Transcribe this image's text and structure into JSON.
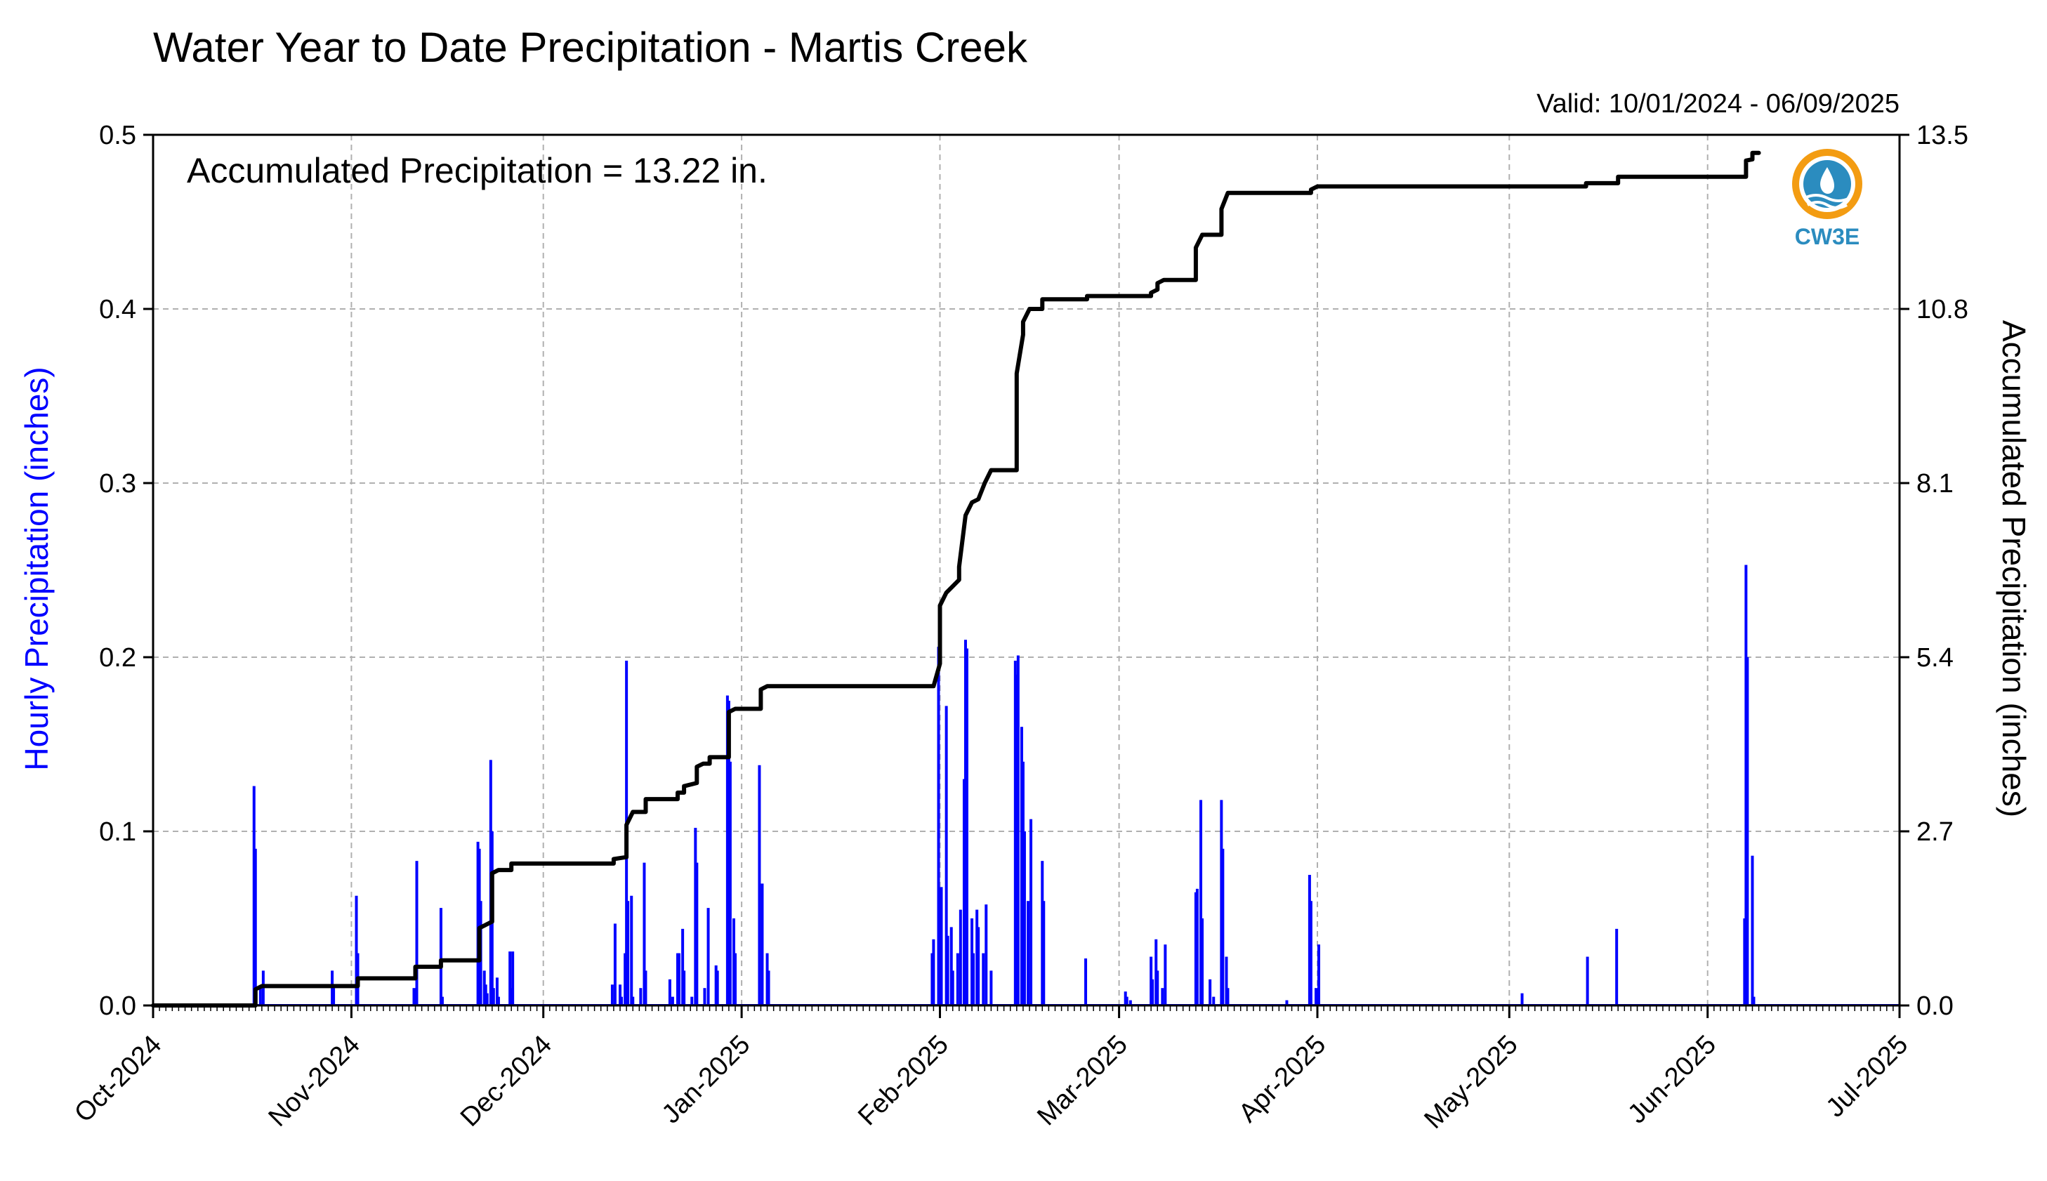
{
  "chart_data": {
    "type": "bar",
    "title": "Water Year to Date Precipitation - Martis Creek",
    "valid_text": "Valid: 10/01/2024 - 06/09/2025",
    "annotation": "Accumulated Precipitation = 13.22 in.",
    "ylabel": "Hourly Precipitation (inches)",
    "y2label": "Accumulated Precipitation (inches)",
    "logo_text": "CW3E",
    "colors": {
      "hourly": "#0000ff",
      "accumulated": "#000000",
      "grid": "#b0b0b0",
      "logo": "#2b8cbf",
      "logo_accent": "#f39c12"
    },
    "grid": true,
    "xlim": [
      "2024-10-01",
      "2025-07-01"
    ],
    "ylim": [
      0,
      0.5
    ],
    "y2lim": [
      0,
      13.5
    ],
    "yticks": [
      "0.0",
      "0.1",
      "0.2",
      "0.3",
      "0.4",
      "0.5"
    ],
    "y2ticks": [
      "0.0",
      "2.7",
      "5.4",
      "8.1",
      "10.8",
      "13.5"
    ],
    "xticks": [
      {
        "date": "2024-10-01",
        "label": "Oct-2024"
      },
      {
        "date": "2024-11-01",
        "label": "Nov-2024"
      },
      {
        "date": "2024-12-01",
        "label": "Dec-2024"
      },
      {
        "date": "2025-01-01",
        "label": "Jan-2025"
      },
      {
        "date": "2025-02-01",
        "label": "Feb-2025"
      },
      {
        "date": "2025-03-01",
        "label": "Mar-2025"
      },
      {
        "date": "2025-04-01",
        "label": "Apr-2025"
      },
      {
        "date": "2025-05-01",
        "label": "May-2025"
      },
      {
        "date": "2025-06-01",
        "label": "Jun-2025"
      },
      {
        "date": "2025-07-01",
        "label": "Jul-2025"
      }
    ],
    "series": [
      {
        "name": "Hourly Precipitation",
        "type": "bar",
        "points": [
          [
            "2024-10-17",
            0.126
          ],
          [
            "2024-10-17",
            0.09
          ],
          [
            "2024-10-18",
            0.02
          ],
          [
            "2024-10-18",
            0.01
          ],
          [
            "2024-10-29",
            0.02
          ],
          [
            "2024-10-29",
            0.01
          ],
          [
            "2024-11-02",
            0.063
          ],
          [
            "2024-11-02",
            0.03
          ],
          [
            "2024-11-11",
            0.083
          ],
          [
            "2024-11-11",
            0.01
          ],
          [
            "2024-11-15",
            0.056
          ],
          [
            "2024-11-15",
            0.005
          ],
          [
            "2024-11-21",
            0.094
          ],
          [
            "2024-11-21",
            0.09
          ],
          [
            "2024-11-21",
            0.06
          ],
          [
            "2024-11-22",
            0.02
          ],
          [
            "2024-11-22",
            0.012
          ],
          [
            "2024-11-22",
            0.007
          ],
          [
            "2024-11-23",
            0.141
          ],
          [
            "2024-11-23",
            0.1
          ],
          [
            "2024-11-23",
            0.01
          ],
          [
            "2024-11-24",
            0.016
          ],
          [
            "2024-11-24",
            0.005
          ],
          [
            "2024-11-26",
            0.031
          ],
          [
            "2024-11-26",
            0.031
          ],
          [
            "2024-11-26",
            0.01
          ],
          [
            "2024-12-12",
            0.047
          ],
          [
            "2024-12-12",
            0.012
          ],
          [
            "2024-12-13",
            0.012
          ],
          [
            "2024-12-13",
            0.005
          ],
          [
            "2024-12-14",
            0.03
          ],
          [
            "2024-12-14",
            0.198
          ],
          [
            "2024-12-14",
            0.06
          ],
          [
            "2024-12-15",
            0.063
          ],
          [
            "2024-12-15",
            0.005
          ],
          [
            "2024-12-16",
            0.01
          ],
          [
            "2024-12-17",
            0.082
          ],
          [
            "2024-12-17",
            0.02
          ],
          [
            "2024-12-21",
            0.005
          ],
          [
            "2024-12-21",
            0.015
          ],
          [
            "2024-12-22",
            0.03
          ],
          [
            "2024-12-22",
            0.03
          ],
          [
            "2024-12-23",
            0.044
          ],
          [
            "2024-12-23",
            0.02
          ],
          [
            "2024-12-24",
            0.005
          ],
          [
            "2024-12-25",
            0.102
          ],
          [
            "2024-12-25",
            0.082
          ],
          [
            "2024-12-26",
            0.01
          ],
          [
            "2024-12-27",
            0.056
          ],
          [
            "2024-12-28",
            0.023
          ],
          [
            "2024-12-28",
            0.02
          ],
          [
            "2024-12-30",
            0.178
          ],
          [
            "2024-12-30",
            0.175
          ],
          [
            "2024-12-30",
            0.14
          ],
          [
            "2024-12-31",
            0.05
          ],
          [
            "2024-12-31",
            0.03
          ],
          [
            "2025-01-04",
            0.07
          ],
          [
            "2025-01-04",
            0.138
          ],
          [
            "2025-01-05",
            0.03
          ],
          [
            "2025-01-05",
            0.02
          ],
          [
            "2025-01-31",
            0.03
          ],
          [
            "2025-01-31",
            0.038
          ],
          [
            "2025-02-01",
            0.068
          ],
          [
            "2025-02-01",
            0.206
          ],
          [
            "2025-02-02",
            0.172
          ],
          [
            "2025-02-02",
            0.04
          ],
          [
            "2025-02-03",
            0.045
          ],
          [
            "2025-02-03",
            0.02
          ],
          [
            "2025-02-04",
            0.055
          ],
          [
            "2025-02-04",
            0.03
          ],
          [
            "2025-02-05",
            0.21
          ],
          [
            "2025-02-05",
            0.205
          ],
          [
            "2025-02-05",
            0.13
          ],
          [
            "2025-02-06",
            0.05
          ],
          [
            "2025-02-06",
            0.03
          ],
          [
            "2025-02-07",
            0.055
          ],
          [
            "2025-02-07",
            0.045
          ],
          [
            "2025-02-08",
            0.058
          ],
          [
            "2025-02-08",
            0.03
          ],
          [
            "2025-02-09",
            0.02
          ],
          [
            "2025-02-13",
            0.201
          ],
          [
            "2025-02-13",
            0.198
          ],
          [
            "2025-02-13",
            0.19
          ],
          [
            "2025-02-14",
            0.1
          ],
          [
            "2025-02-14",
            0.16
          ],
          [
            "2025-02-14",
            0.14
          ],
          [
            "2025-02-15",
            0.107
          ],
          [
            "2025-02-15",
            0.06
          ],
          [
            "2025-02-17",
            0.083
          ],
          [
            "2025-02-17",
            0.06
          ],
          [
            "2025-02-24",
            0.027
          ],
          [
            "2025-03-02",
            0.008
          ],
          [
            "2025-03-02",
            0.005
          ],
          [
            "2025-03-03",
            0.003
          ],
          [
            "2025-03-06",
            0.028
          ],
          [
            "2025-03-06",
            0.015
          ],
          [
            "2025-03-07",
            0.038
          ],
          [
            "2025-03-07",
            0.02
          ],
          [
            "2025-03-08",
            0.035
          ],
          [
            "2025-03-08",
            0.01
          ],
          [
            "2025-03-13",
            0.065
          ],
          [
            "2025-03-13",
            0.067
          ],
          [
            "2025-03-14",
            0.118
          ],
          [
            "2025-03-14",
            0.05
          ],
          [
            "2025-03-15",
            0.015
          ],
          [
            "2025-03-16",
            0.005
          ],
          [
            "2025-03-17",
            0.118
          ],
          [
            "2025-03-17",
            0.09
          ],
          [
            "2025-03-18",
            0.028
          ],
          [
            "2025-03-18",
            0.01
          ],
          [
            "2025-03-27",
            0.003
          ],
          [
            "2025-03-31",
            0.075
          ],
          [
            "2025-03-31",
            0.06
          ],
          [
            "2025-04-01",
            0.035
          ],
          [
            "2025-04-01",
            0.01
          ],
          [
            "2025-05-03",
            0.007
          ],
          [
            "2025-05-13",
            0.028
          ],
          [
            "2025-05-18",
            0.044
          ],
          [
            "2025-06-07",
            0.253
          ],
          [
            "2025-06-07",
            0.2
          ],
          [
            "2025-06-07",
            0.05
          ],
          [
            "2025-06-08",
            0.086
          ],
          [
            "2025-06-08",
            0.005
          ]
        ]
      },
      {
        "name": "Accumulated Precipitation",
        "type": "line",
        "axis": "right",
        "points": [
          [
            "2024-10-01",
            0.0
          ],
          [
            "2024-10-17",
            0.0
          ],
          [
            "2024-10-17",
            0.25
          ],
          [
            "2024-10-18",
            0.3
          ],
          [
            "2024-11-02",
            0.3
          ],
          [
            "2024-11-02",
            0.42
          ],
          [
            "2024-11-11",
            0.42
          ],
          [
            "2024-11-11",
            0.6
          ],
          [
            "2024-11-15",
            0.6
          ],
          [
            "2024-11-15",
            0.7
          ],
          [
            "2024-11-21",
            0.7
          ],
          [
            "2024-11-21",
            1.2
          ],
          [
            "2024-11-22",
            1.25
          ],
          [
            "2024-11-23",
            1.3
          ],
          [
            "2024-11-23",
            2.05
          ],
          [
            "2024-11-24",
            2.1
          ],
          [
            "2024-11-26",
            2.1
          ],
          [
            "2024-11-26",
            2.2
          ],
          [
            "2024-12-12",
            2.2
          ],
          [
            "2024-12-12",
            2.27
          ],
          [
            "2024-12-14",
            2.3
          ],
          [
            "2024-12-14",
            2.8
          ],
          [
            "2024-12-15",
            3.0
          ],
          [
            "2024-12-17",
            3.0
          ],
          [
            "2024-12-17",
            3.2
          ],
          [
            "2024-12-22",
            3.2
          ],
          [
            "2024-12-22",
            3.3
          ],
          [
            "2024-12-23",
            3.3
          ],
          [
            "2024-12-23",
            3.4
          ],
          [
            "2024-12-25",
            3.45
          ],
          [
            "2024-12-25",
            3.7
          ],
          [
            "2024-12-26",
            3.75
          ],
          [
            "2024-12-27",
            3.75
          ],
          [
            "2024-12-27",
            3.85
          ],
          [
            "2024-12-30",
            3.85
          ],
          [
            "2024-12-30",
            4.55
          ],
          [
            "2024-12-31",
            4.6
          ],
          [
            "2025-01-04",
            4.6
          ],
          [
            "2025-01-04",
            4.9
          ],
          [
            "2025-01-05",
            4.95
          ],
          [
            "2025-01-31",
            4.95
          ],
          [
            "2025-02-01",
            5.3
          ],
          [
            "2025-02-01",
            6.2
          ],
          [
            "2025-02-02",
            6.4
          ],
          [
            "2025-02-03",
            6.5
          ],
          [
            "2025-02-04",
            6.6
          ],
          [
            "2025-02-04",
            6.8
          ],
          [
            "2025-02-05",
            7.6
          ],
          [
            "2025-02-06",
            7.8
          ],
          [
            "2025-02-07",
            7.85
          ],
          [
            "2025-02-08",
            8.1
          ],
          [
            "2025-02-09",
            8.3
          ],
          [
            "2025-02-13",
            8.3
          ],
          [
            "2025-02-13",
            9.8
          ],
          [
            "2025-02-14",
            10.4
          ],
          [
            "2025-02-14",
            10.6
          ],
          [
            "2025-02-15",
            10.8
          ],
          [
            "2025-02-17",
            10.8
          ],
          [
            "2025-02-17",
            10.95
          ],
          [
            "2025-02-24",
            10.95
          ],
          [
            "2025-02-24",
            11.0
          ],
          [
            "2025-03-06",
            11.0
          ],
          [
            "2025-03-06",
            11.05
          ],
          [
            "2025-03-07",
            11.1
          ],
          [
            "2025-03-07",
            11.2
          ],
          [
            "2025-03-08",
            11.25
          ],
          [
            "2025-03-13",
            11.25
          ],
          [
            "2025-03-13",
            11.75
          ],
          [
            "2025-03-14",
            11.95
          ],
          [
            "2025-03-17",
            11.95
          ],
          [
            "2025-03-17",
            12.35
          ],
          [
            "2025-03-18",
            12.6
          ],
          [
            "2025-03-31",
            12.6
          ],
          [
            "2025-03-31",
            12.65
          ],
          [
            "2025-04-01",
            12.7
          ],
          [
            "2025-05-13",
            12.7
          ],
          [
            "2025-05-13",
            12.75
          ],
          [
            "2025-05-18",
            12.75
          ],
          [
            "2025-05-18",
            12.85
          ],
          [
            "2025-06-07",
            12.85
          ],
          [
            "2025-06-07",
            13.1
          ],
          [
            "2025-06-08",
            13.12
          ],
          [
            "2025-06-08",
            13.22
          ],
          [
            "2025-06-09",
            13.22
          ]
        ]
      }
    ]
  }
}
